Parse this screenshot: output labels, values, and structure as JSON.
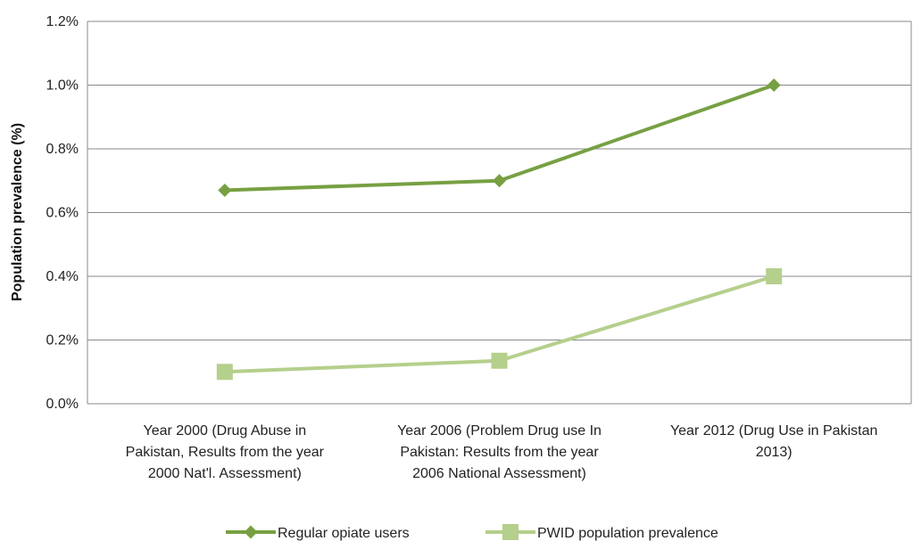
{
  "chart_data": {
    "type": "line",
    "title": "",
    "xlabel": "",
    "ylabel": "Population prevalence (%)",
    "ylim": [
      0,
      1.2
    ],
    "yticks": [
      "0.0%",
      "0.2%",
      "0.4%",
      "0.6%",
      "0.8%",
      "1.0%",
      "1.2%"
    ],
    "grid": true,
    "legend_position": "bottom",
    "categories": [
      [
        "Year 2000 (Drug Abuse in",
        "Pakistan, Results from the year",
        "2000 Nat'l. Assessment)"
      ],
      [
        "Year 2006 (Problem Drug use In",
        "Pakistan: Results from the year",
        "2006 National Assessment)"
      ],
      [
        "Year 2012 (Drug Use in Pakistan",
        "2013)"
      ]
    ],
    "series": [
      {
        "name": "Regular opiate users",
        "values": [
          0.67,
          0.7,
          1.0
        ],
        "color": "#77a043",
        "marker": "diamond"
      },
      {
        "name": "PWID population prevalence",
        "values": [
          0.1,
          0.135,
          0.4
        ],
        "color": "#b5cf8c",
        "marker": "square"
      }
    ]
  }
}
